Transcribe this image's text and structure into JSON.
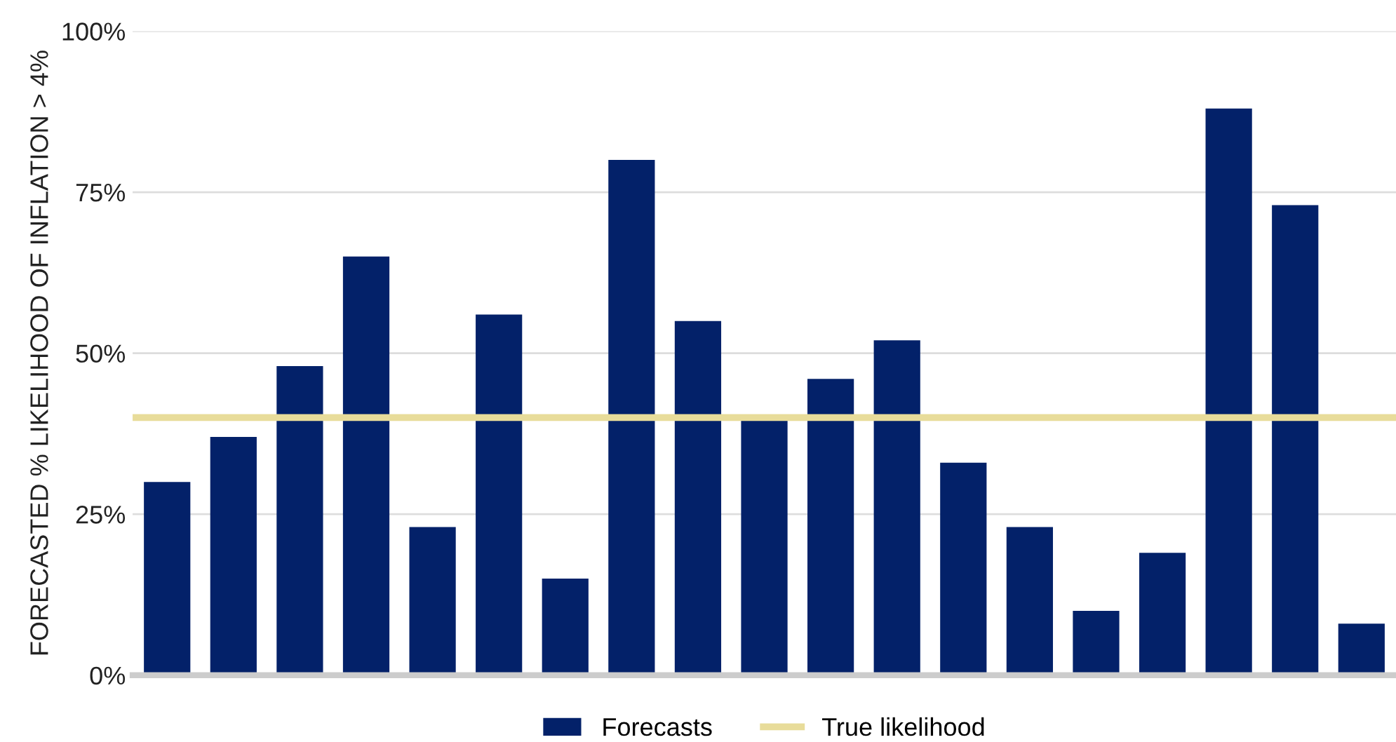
{
  "chart_data": {
    "type": "bar",
    "ylabel": "FORECASTED % LIKELIHOOD OF INFLATION > 4%",
    "categories": [
      null,
      null,
      null,
      null,
      null,
      null,
      null,
      null,
      null,
      null,
      null,
      null,
      null,
      null,
      null,
      null,
      null,
      null,
      null
    ],
    "series": [
      {
        "name": "Forecasts",
        "color": "#032169",
        "values": [
          30,
          37,
          48,
          65,
          23,
          56,
          15,
          80,
          55,
          40,
          46,
          52,
          33,
          23,
          10,
          19,
          88,
          73,
          8
        ]
      }
    ],
    "ylim": [
      0,
      100
    ],
    "yticks": [
      {
        "value": 0,
        "label": "0%"
      },
      {
        "value": 25,
        "label": "25%"
      },
      {
        "value": 50,
        "label": "50%"
      },
      {
        "value": 75,
        "label": "75%"
      },
      {
        "value": 100,
        "label": "100%"
      }
    ],
    "ref_lines": [
      {
        "axis": "y",
        "value": 40,
        "label": "True likelihood",
        "color": "#e8dc9a"
      }
    ],
    "grid": "y",
    "legend": "bottom"
  }
}
